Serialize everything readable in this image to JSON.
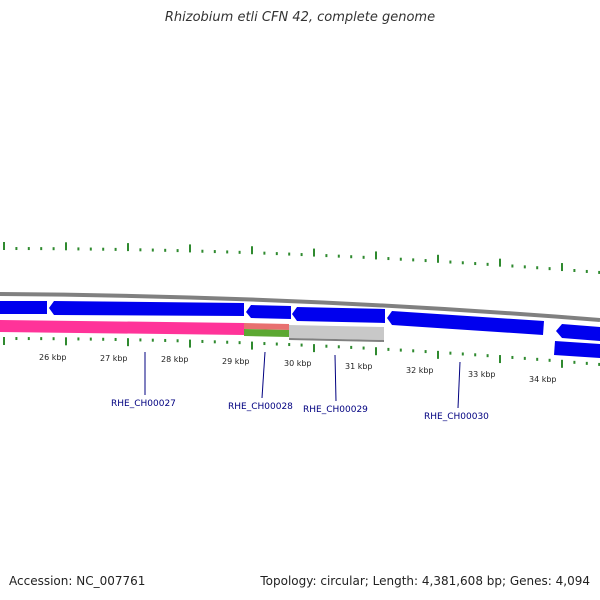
{
  "header": {
    "title": "Rhizobium etli CFN 42, complete genome"
  },
  "footer": {
    "accession": "Accession: NC_007761",
    "topology": "Topology: circular; Length: 4,381,608 bp; Genes: 4,094"
  },
  "colors": {
    "cds": "#0000ee",
    "backbone": "#808080",
    "ticks": "#2f8a2f",
    "gene_label": "#000080",
    "feature_magenta": "#ff3399",
    "feature_green": "#5ca832",
    "feature_grey": "#c8c8c8"
  },
  "scale_labels": [
    "26 kbp",
    "27 kbp",
    "28 kbp",
    "29 kbp",
    "30 kbp",
    "31 kbp",
    "32 kbp",
    "33 kbp",
    "34 kbp"
  ],
  "gene_labels": [
    "RHE_CH00027",
    "RHE_CH00028",
    "RHE_CH00029",
    "RHE_CH00030"
  ]
}
